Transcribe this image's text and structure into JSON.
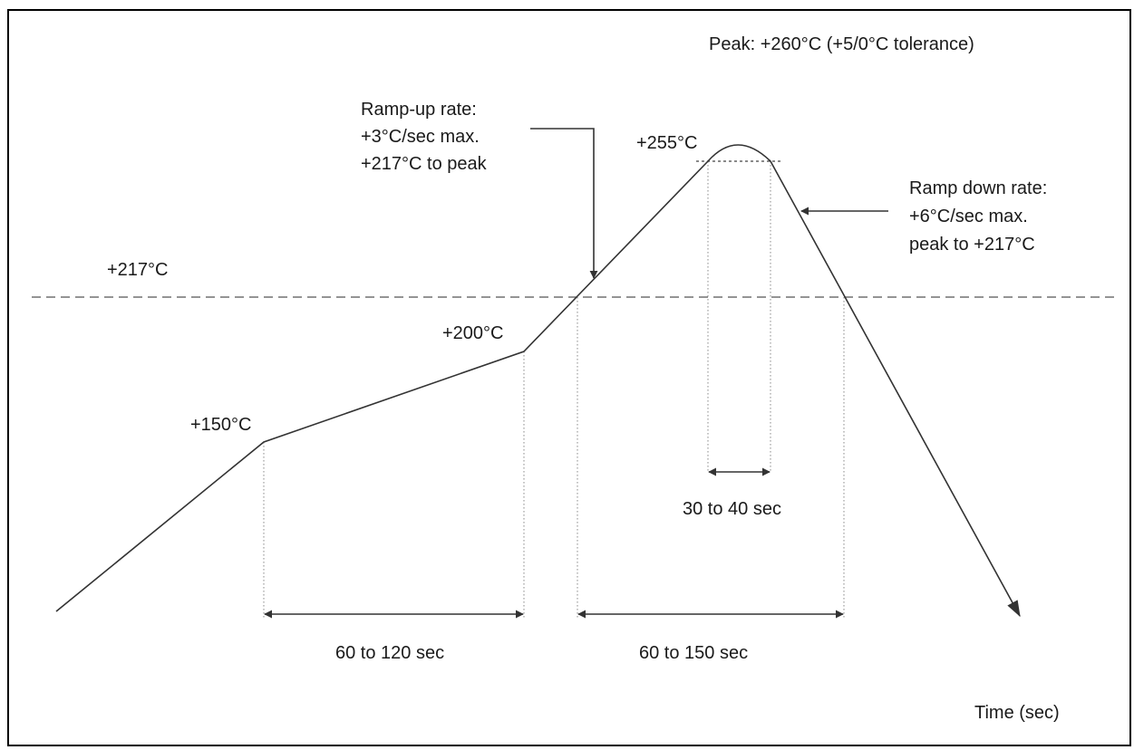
{
  "labels": {
    "peak": "Peak: +260°C (+5/0°C tolerance)",
    "ramp_up_line1": "Ramp-up rate:",
    "ramp_up_line2": "+3°C/sec max.",
    "ramp_up_line3": "+217°C to peak",
    "ramp_down_line1": "Ramp down rate:",
    "ramp_down_line2": "+6°C/sec max.",
    "ramp_down_line3": "peak to +217°C",
    "temp_255": "+255°C",
    "temp_217": "+217°C",
    "temp_200": "+200°C",
    "temp_150": "+150°C",
    "dur_peak": "30 to 40 sec",
    "dur_soak": "60 to 120 sec",
    "dur_reflow": "60 to 150 sec",
    "x_axis": "Time (sec)"
  }
}
